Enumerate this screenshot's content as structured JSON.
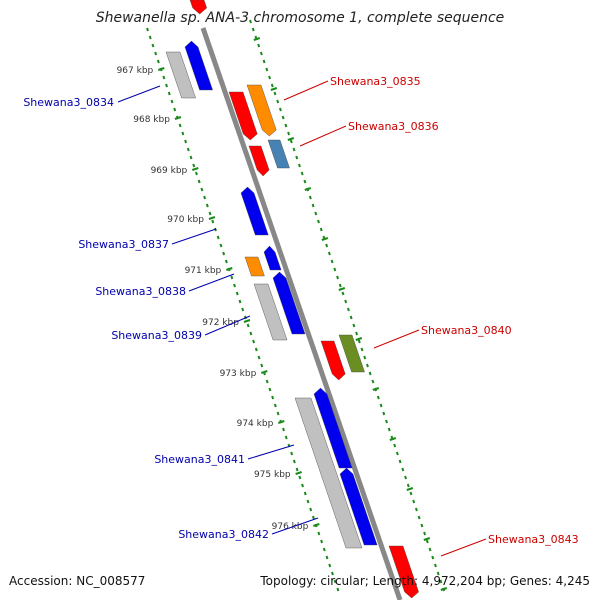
{
  "title": "Shewanella sp. ANA-3 chromosome 1, complete sequence",
  "footer": {
    "accession": "Accession: NC_008577",
    "topology": "Topology: circular; Length: 4,972,204 bp; Genes: 4,245"
  },
  "colors": {
    "backbone": "#888888",
    "ticks": "#1a8a1a",
    "label_forward": "#cc0000",
    "label_reverse": "#0000aa",
    "gene_red": "#ff0000",
    "gene_orange": "#ff8c00",
    "gene_blue": "#0000ee",
    "gene_steel": "#4682b4",
    "gene_olive": "#6b8e23",
    "gene_gray": "#c0c0c0"
  },
  "kbp_labels": [
    "967 kbp",
    "968 kbp",
    "969 kbp",
    "970 kbp",
    "971 kbp",
    "972 kbp",
    "973 kbp",
    "974 kbp",
    "975 kbp",
    "976 kbp"
  ],
  "genes": [
    {
      "label": "Shewana3_0834",
      "strand": "reverse"
    },
    {
      "label": "Shewana3_0835",
      "strand": "forward"
    },
    {
      "label": "Shewana3_0836",
      "strand": "forward"
    },
    {
      "label": "Shewana3_0837",
      "strand": "reverse"
    },
    {
      "label": "Shewana3_0838",
      "strand": "reverse"
    },
    {
      "label": "Shewana3_0839",
      "strand": "reverse"
    },
    {
      "label": "Shewana3_0840",
      "strand": "forward"
    },
    {
      "label": "Shewana3_0841",
      "strand": "reverse"
    },
    {
      "label": "Shewana3_0842",
      "strand": "reverse"
    },
    {
      "label": "Shewana3_0843",
      "strand": "forward"
    }
  ]
}
